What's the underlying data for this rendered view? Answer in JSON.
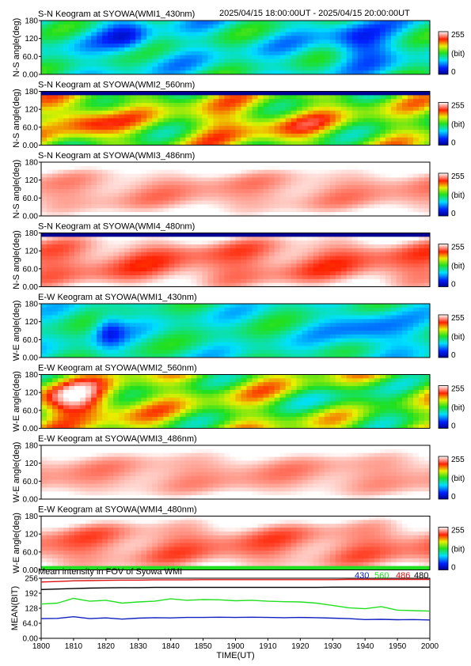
{
  "header": {
    "time_range": "2025/04/15 18:00:00UT - 2025/04/15 20:00:00UT"
  },
  "colors": {
    "series_430": "#1020c0",
    "series_560": "#20e020",
    "series_486": "#e01010",
    "series_480": "#000000"
  },
  "chart_data": [
    {
      "type": "heatmap",
      "title": "S-N Keogram at SYOWA(WMI1_430nm)",
      "ylabel": "N-S angle(deg)",
      "yticks": [
        "0.00",
        "60.0",
        "120",
        "180"
      ],
      "ylim": [
        0,
        180
      ],
      "colormap": "rainbow",
      "colorbar": {
        "min_label": "0",
        "max_label": "255",
        "unit": "(bit)",
        "range": [
          0,
          255
        ]
      },
      "scene": {
        "base": 95,
        "amplitude": 40,
        "bands": [
          {
            "t": 0.22,
            "y": 0.3,
            "w": 0.06,
            "a": -50
          },
          {
            "t": 0.82,
            "y": 0.4,
            "w": 0.08,
            "a": -60
          }
        ],
        "edge_dark": false
      }
    },
    {
      "type": "heatmap",
      "title": "S-N Keogram at SYOWA(WMI2_560nm)",
      "ylabel": "N-S angle(deg)",
      "yticks": [
        "0.00",
        "60.0",
        "120",
        "180"
      ],
      "ylim": [
        0,
        180
      ],
      "colormap": "rainbow",
      "colorbar": {
        "min_label": "0",
        "max_label": "255",
        "unit": "(bit)",
        "range": [
          0,
          255
        ]
      },
      "scene": {
        "base": 145,
        "amplitude": 55,
        "bands": [
          {
            "t": 0.1,
            "y": 0.5,
            "w": 0.08,
            "a": 70
          },
          {
            "t": 0.55,
            "y": 0.6,
            "w": 0.2,
            "a": 40
          }
        ],
        "edge_dark": true
      }
    },
    {
      "type": "heatmap",
      "title": "S-N Keogram at SYOWA(WMI3_486nm)",
      "ylabel": "N-S angle(deg)",
      "yticks": [
        "0.00",
        "60.0",
        "120",
        "180"
      ],
      "ylim": [
        0,
        180
      ],
      "colormap": "rainbow",
      "colorbar": {
        "min_label": "0",
        "max_label": "255",
        "unit": "(bit)",
        "range": [
          0,
          255
        ]
      },
      "scene": {
        "base": 235,
        "amplitude": 12,
        "bands": [],
        "edge_dark": false,
        "white_edges": true
      }
    },
    {
      "type": "heatmap",
      "title": "S-N Keogram at SYOWA(WMI4_480nm)",
      "ylabel": "N-S angle(deg)",
      "yticks": [
        "0.00",
        "60.0",
        "120",
        "180"
      ],
      "ylim": [
        0,
        180
      ],
      "colormap": "rainbow",
      "colorbar": {
        "min_label": "0",
        "max_label": "255",
        "unit": "(bit)",
        "range": [
          0,
          255
        ]
      },
      "scene": {
        "base": 225,
        "amplitude": 18,
        "bands": [],
        "edge_dark": true,
        "white_edges": true
      }
    },
    {
      "type": "heatmap",
      "title": "E-W Keogram at SYOWA(WMI1_430nm)",
      "ylabel": "W-E angle(deg)",
      "yticks": [
        "0.00",
        "60.0",
        "120",
        "180"
      ],
      "ylim": [
        0,
        180
      ],
      "colormap": "rainbow",
      "colorbar": {
        "min_label": "0",
        "max_label": "255",
        "unit": "(bit)",
        "range": [
          0,
          255
        ]
      },
      "scene": {
        "base": 100,
        "amplitude": 30,
        "bands": [
          {
            "t": 0.17,
            "y": 0.5,
            "w": 0.04,
            "a": -55
          },
          {
            "t": 0.85,
            "y": 0.5,
            "w": 0.1,
            "a": -45
          }
        ],
        "edge_dark": false
      }
    },
    {
      "type": "heatmap",
      "title": "E-W Keogram at SYOWA(WMI2_560nm)",
      "ylabel": "W-E angle(deg)",
      "yticks": [
        "0.00",
        "60.0",
        "120",
        "180"
      ],
      "ylim": [
        0,
        180
      ],
      "colormap": "rainbow",
      "colorbar": {
        "min_label": "0",
        "max_label": "255",
        "unit": "(bit)",
        "range": [
          0,
          255
        ]
      },
      "scene": {
        "base": 150,
        "amplitude": 55,
        "bands": [
          {
            "t": 0.1,
            "y": 0.5,
            "w": 0.1,
            "a": 90
          },
          {
            "t": 0.82,
            "y": 0.5,
            "w": 0.12,
            "a": -40
          }
        ],
        "edge_dark": false
      }
    },
    {
      "type": "heatmap",
      "title": "E-W Keogram at SYOWA(WMI3_486nm)",
      "ylabel": "W-E angle(deg)",
      "yticks": [
        "0.00",
        "60.0",
        "120",
        "180"
      ],
      "ylim": [
        0,
        180
      ],
      "colormap": "rainbow",
      "colorbar": {
        "min_label": "0",
        "max_label": "255",
        "unit": "(bit)",
        "range": [
          0,
          255
        ]
      },
      "scene": {
        "base": 235,
        "amplitude": 10,
        "bands": [],
        "edge_dark": false,
        "white_edges": true
      }
    },
    {
      "type": "heatmap",
      "title": "E-W Keogram at SYOWA(WMI4_480nm)",
      "ylabel": "W-E angle(deg)",
      "yticks": [
        "0.00",
        "60.0",
        "120",
        "180"
      ],
      "ylim": [
        0,
        180
      ],
      "colormap": "rainbow",
      "colorbar": {
        "min_label": "0",
        "max_label": "255",
        "unit": "(bit)",
        "range": [
          0,
          255
        ]
      },
      "scene": {
        "base": 228,
        "amplitude": 16,
        "bands": [],
        "edge_dark": false,
        "white_edges": true,
        "green_edges": true
      }
    },
    {
      "type": "line",
      "title": "Mean intensity in FOV of Syowa WMI",
      "xlabel": "TIME(UT)",
      "ylabel": "MEAN(BIT)",
      "xticks": [
        "1800",
        "1810",
        "1820",
        "1830",
        "1840",
        "1850",
        "1900",
        "1910",
        "1920",
        "1930",
        "1940",
        "1950",
        "2000"
      ],
      "yticks": [
        "0.00",
        "64.0",
        "128",
        "192",
        "256"
      ],
      "ylim": [
        0,
        256
      ],
      "legend": [
        "430",
        "560",
        "486",
        "480"
      ],
      "series": [
        {
          "name": "430",
          "values": [
            84,
            85,
            92,
            84,
            87,
            82,
            86,
            88,
            87,
            89,
            89,
            90,
            89,
            90,
            89,
            88,
            89,
            88,
            86,
            84,
            80,
            81,
            79,
            80,
            78
          ]
        },
        {
          "name": "560",
          "values": [
            146,
            150,
            170,
            158,
            162,
            150,
            155,
            158,
            168,
            162,
            165,
            164,
            160,
            162,
            158,
            156,
            155,
            150,
            140,
            130,
            126,
            135,
            120,
            118,
            116
          ]
        },
        {
          "name": "486",
          "values": [
            240,
            242,
            245,
            246,
            247,
            248,
            248,
            249,
            249,
            249,
            250,
            250,
            250,
            250,
            250,
            250,
            250,
            250,
            250,
            251,
            251,
            251,
            251,
            251,
            251
          ]
        },
        {
          "name": "480",
          "values": [
            208,
            210,
            212,
            214,
            215,
            216,
            216,
            217,
            217,
            217,
            217,
            217,
            217,
            217,
            217,
            217,
            217,
            217,
            218,
            218,
            218,
            218,
            218,
            218,
            218
          ]
        }
      ]
    }
  ]
}
